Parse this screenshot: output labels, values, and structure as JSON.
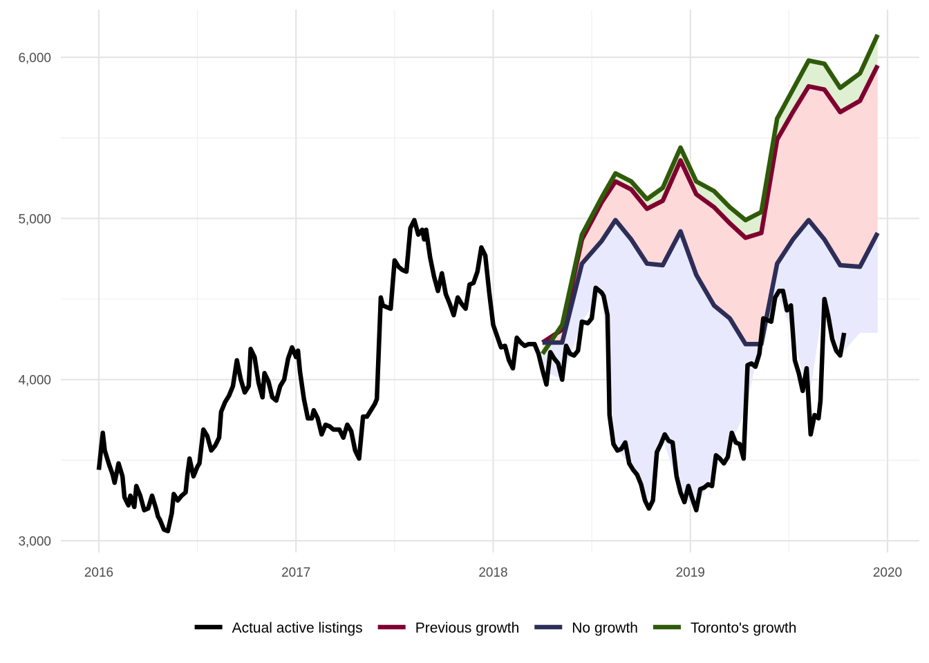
{
  "chart_data": {
    "type": "line",
    "title": "",
    "xlabel": "",
    "ylabel": "",
    "xlim": [
      2016,
      2020
    ],
    "ylim": [
      3000,
      6200
    ],
    "x_ticks": [
      2016,
      2017,
      2018,
      2019,
      2020
    ],
    "x_tick_labels": [
      "2016",
      "2017",
      "2018",
      "2019",
      "2020"
    ],
    "y_ticks": [
      3000,
      4000,
      5000,
      6000
    ],
    "y_tick_labels": [
      "3,000",
      "4,000",
      "5,000",
      "6,000"
    ],
    "grid": true,
    "legend_position": "bottom",
    "series": [
      {
        "name": "Actual active listings",
        "color": "#000000",
        "points": [
          [
            2016.0,
            3440
          ],
          [
            2016.02,
            3670
          ],
          [
            2016.03,
            3560
          ],
          [
            2016.05,
            3480
          ],
          [
            2016.07,
            3410
          ],
          [
            2016.08,
            3360
          ],
          [
            2016.1,
            3480
          ],
          [
            2016.12,
            3400
          ],
          [
            2016.13,
            3270
          ],
          [
            2016.15,
            3220
          ],
          [
            2016.16,
            3280
          ],
          [
            2016.18,
            3210
          ],
          [
            2016.19,
            3340
          ],
          [
            2016.21,
            3280
          ],
          [
            2016.23,
            3190
          ],
          [
            2016.25,
            3200
          ],
          [
            2016.27,
            3280
          ],
          [
            2016.29,
            3200
          ],
          [
            2016.3,
            3150
          ],
          [
            2016.31,
            3130
          ],
          [
            2016.33,
            3070
          ],
          [
            2016.35,
            3060
          ],
          [
            2016.37,
            3170
          ],
          [
            2016.38,
            3290
          ],
          [
            2016.4,
            3250
          ],
          [
            2016.42,
            3280
          ],
          [
            2016.44,
            3300
          ],
          [
            2016.45,
            3420
          ],
          [
            2016.46,
            3510
          ],
          [
            2016.48,
            3400
          ],
          [
            2016.5,
            3460
          ],
          [
            2016.51,
            3480
          ],
          [
            2016.53,
            3690
          ],
          [
            2016.55,
            3650
          ],
          [
            2016.57,
            3560
          ],
          [
            2016.59,
            3590
          ],
          [
            2016.61,
            3640
          ],
          [
            2016.62,
            3800
          ],
          [
            2016.64,
            3860
          ],
          [
            2016.66,
            3900
          ],
          [
            2016.68,
            3960
          ],
          [
            2016.7,
            4120
          ],
          [
            2016.72,
            4000
          ],
          [
            2016.74,
            3920
          ],
          [
            2016.76,
            3960
          ],
          [
            2016.77,
            4190
          ],
          [
            2016.79,
            4140
          ],
          [
            2016.81,
            3980
          ],
          [
            2016.83,
            3890
          ],
          [
            2016.84,
            4040
          ],
          [
            2016.86,
            3990
          ],
          [
            2016.88,
            3890
          ],
          [
            2016.9,
            3870
          ],
          [
            2016.92,
            3960
          ],
          [
            2016.94,
            4000
          ],
          [
            2016.96,
            4130
          ],
          [
            2016.98,
            4200
          ],
          [
            2017.0,
            4140
          ],
          [
            2017.01,
            4180
          ],
          [
            2017.02,
            4050
          ],
          [
            2017.04,
            3880
          ],
          [
            2017.06,
            3760
          ],
          [
            2017.08,
            3760
          ],
          [
            2017.09,
            3810
          ],
          [
            2017.11,
            3760
          ],
          [
            2017.13,
            3660
          ],
          [
            2017.15,
            3720
          ],
          [
            2017.17,
            3710
          ],
          [
            2017.19,
            3690
          ],
          [
            2017.22,
            3690
          ],
          [
            2017.24,
            3640
          ],
          [
            2017.26,
            3720
          ],
          [
            2017.28,
            3680
          ],
          [
            2017.3,
            3560
          ],
          [
            2017.32,
            3510
          ],
          [
            2017.34,
            3770
          ],
          [
            2017.36,
            3770
          ],
          [
            2017.38,
            3810
          ],
          [
            2017.4,
            3850
          ],
          [
            2017.41,
            3880
          ],
          [
            2017.43,
            4510
          ],
          [
            2017.44,
            4460
          ],
          [
            2017.46,
            4450
          ],
          [
            2017.48,
            4440
          ],
          [
            2017.5,
            4740
          ],
          [
            2017.52,
            4700
          ],
          [
            2017.54,
            4680
          ],
          [
            2017.56,
            4670
          ],
          [
            2017.58,
            4940
          ],
          [
            2017.6,
            4990
          ],
          [
            2017.62,
            4900
          ],
          [
            2017.64,
            4930
          ],
          [
            2017.65,
            4870
          ],
          [
            2017.66,
            4930
          ],
          [
            2017.68,
            4760
          ],
          [
            2017.7,
            4640
          ],
          [
            2017.72,
            4550
          ],
          [
            2017.74,
            4660
          ],
          [
            2017.76,
            4530
          ],
          [
            2017.78,
            4470
          ],
          [
            2017.8,
            4400
          ],
          [
            2017.82,
            4510
          ],
          [
            2017.84,
            4470
          ],
          [
            2017.86,
            4440
          ],
          [
            2017.88,
            4590
          ],
          [
            2017.9,
            4600
          ],
          [
            2017.92,
            4670
          ],
          [
            2017.94,
            4820
          ],
          [
            2017.96,
            4770
          ],
          [
            2017.98,
            4540
          ],
          [
            2018.0,
            4340
          ],
          [
            2018.02,
            4270
          ],
          [
            2018.04,
            4200
          ],
          [
            2018.06,
            4210
          ],
          [
            2018.08,
            4120
          ],
          [
            2018.1,
            4070
          ],
          [
            2018.12,
            4260
          ],
          [
            2018.14,
            4230
          ],
          [
            2018.16,
            4210
          ],
          [
            2018.18,
            4220
          ],
          [
            2018.21,
            4220
          ],
          [
            2018.23,
            4160
          ],
          [
            2018.25,
            4060
          ],
          [
            2018.27,
            3970
          ],
          [
            2018.29,
            4170
          ],
          [
            2018.31,
            4130
          ],
          [
            2018.33,
            4100
          ],
          [
            2018.35,
            4000
          ],
          [
            2018.37,
            4210
          ],
          [
            2018.39,
            4160
          ],
          [
            2018.41,
            4150
          ],
          [
            2018.43,
            4180
          ],
          [
            2018.45,
            4360
          ],
          [
            2018.48,
            4350
          ],
          [
            2018.5,
            4380
          ],
          [
            2018.52,
            4570
          ],
          [
            2018.55,
            4540
          ],
          [
            2018.56,
            4520
          ],
          [
            2018.58,
            4400
          ],
          [
            2018.59,
            3780
          ],
          [
            2018.61,
            3600
          ],
          [
            2018.63,
            3560
          ],
          [
            2018.65,
            3570
          ],
          [
            2018.67,
            3610
          ],
          [
            2018.69,
            3480
          ],
          [
            2018.71,
            3440
          ],
          [
            2018.73,
            3410
          ],
          [
            2018.75,
            3350
          ],
          [
            2018.77,
            3250
          ],
          [
            2018.79,
            3200
          ],
          [
            2018.81,
            3250
          ],
          [
            2018.83,
            3550
          ],
          [
            2018.85,
            3600
          ],
          [
            2018.87,
            3660
          ],
          [
            2018.89,
            3620
          ],
          [
            2018.91,
            3610
          ],
          [
            2018.93,
            3400
          ],
          [
            2018.95,
            3300
          ],
          [
            2018.97,
            3240
          ],
          [
            2018.99,
            3340
          ],
          [
            2019.01,
            3260
          ],
          [
            2019.03,
            3190
          ],
          [
            2019.05,
            3320
          ],
          [
            2019.07,
            3330
          ],
          [
            2019.09,
            3350
          ],
          [
            2019.11,
            3340
          ],
          [
            2019.13,
            3530
          ],
          [
            2019.15,
            3510
          ],
          [
            2019.17,
            3480
          ],
          [
            2019.19,
            3520
          ],
          [
            2019.21,
            3670
          ],
          [
            2019.23,
            3610
          ],
          [
            2019.25,
            3600
          ],
          [
            2019.27,
            3510
          ],
          [
            2019.29,
            4090
          ],
          [
            2019.31,
            4100
          ],
          [
            2019.33,
            4080
          ],
          [
            2019.35,
            4160
          ],
          [
            2019.37,
            4380
          ],
          [
            2019.39,
            4370
          ],
          [
            2019.41,
            4360
          ],
          [
            2019.43,
            4510
          ],
          [
            2019.45,
            4550
          ],
          [
            2019.47,
            4550
          ],
          [
            2019.49,
            4430
          ],
          [
            2019.51,
            4460
          ],
          [
            2019.53,
            4120
          ],
          [
            2019.55,
            4040
          ],
          [
            2019.57,
            3930
          ],
          [
            2019.59,
            4070
          ],
          [
            2019.61,
            3660
          ],
          [
            2019.63,
            3780
          ],
          [
            2019.65,
            3760
          ],
          [
            2019.66,
            3870
          ],
          [
            2019.68,
            4500
          ],
          [
            2019.7,
            4390
          ],
          [
            2019.72,
            4250
          ],
          [
            2019.74,
            4180
          ],
          [
            2019.76,
            4150
          ],
          [
            2019.78,
            4290
          ]
        ]
      },
      {
        "name": "Previous growth",
        "color": "#7f0030",
        "fill": "#fdd9d9",
        "points": [
          [
            2018.25,
            4230
          ],
          [
            2018.35,
            4310
          ],
          [
            2018.45,
            4870
          ],
          [
            2018.55,
            5100
          ],
          [
            2018.62,
            5230
          ],
          [
            2018.7,
            5180
          ],
          [
            2018.78,
            5060
          ],
          [
            2018.86,
            5110
          ],
          [
            2018.95,
            5360
          ],
          [
            2019.03,
            5150
          ],
          [
            2019.12,
            5070
          ],
          [
            2019.2,
            4970
          ],
          [
            2019.28,
            4880
          ],
          [
            2019.36,
            4910
          ],
          [
            2019.44,
            5490
          ],
          [
            2019.52,
            5660
          ],
          [
            2019.6,
            5820
          ],
          [
            2019.68,
            5800
          ],
          [
            2019.76,
            5660
          ],
          [
            2019.86,
            5730
          ],
          [
            2019.95,
            5950
          ]
        ]
      },
      {
        "name": "No growth",
        "color": "#2d2e58",
        "fill": "#e8e9fc",
        "points": [
          [
            2018.25,
            4230
          ],
          [
            2018.35,
            4230
          ],
          [
            2018.45,
            4720
          ],
          [
            2018.55,
            4860
          ],
          [
            2018.62,
            4990
          ],
          [
            2018.7,
            4870
          ],
          [
            2018.78,
            4720
          ],
          [
            2018.86,
            4710
          ],
          [
            2018.95,
            4920
          ],
          [
            2019.03,
            4650
          ],
          [
            2019.12,
            4460
          ],
          [
            2019.2,
            4380
          ],
          [
            2019.28,
            4220
          ],
          [
            2019.36,
            4220
          ],
          [
            2019.44,
            4720
          ],
          [
            2019.52,
            4870
          ],
          [
            2019.6,
            4990
          ],
          [
            2019.68,
            4870
          ],
          [
            2019.76,
            4710
          ],
          [
            2019.86,
            4700
          ],
          [
            2019.95,
            4910
          ]
        ]
      },
      {
        "name": "Toronto's growth",
        "color": "#2f5a0a",
        "fill": "#dff0d2",
        "points": [
          [
            2018.25,
            4160
          ],
          [
            2018.35,
            4340
          ],
          [
            2018.45,
            4900
          ],
          [
            2018.55,
            5130
          ],
          [
            2018.62,
            5280
          ],
          [
            2018.7,
            5230
          ],
          [
            2018.78,
            5120
          ],
          [
            2018.86,
            5190
          ],
          [
            2018.95,
            5440
          ],
          [
            2019.03,
            5230
          ],
          [
            2019.12,
            5170
          ],
          [
            2019.2,
            5070
          ],
          [
            2019.28,
            4990
          ],
          [
            2019.36,
            5040
          ],
          [
            2019.44,
            5620
          ],
          [
            2019.52,
            5800
          ],
          [
            2019.6,
            5980
          ],
          [
            2019.68,
            5960
          ],
          [
            2019.76,
            5810
          ],
          [
            2019.86,
            5900
          ],
          [
            2019.95,
            6140
          ]
        ]
      }
    ]
  }
}
